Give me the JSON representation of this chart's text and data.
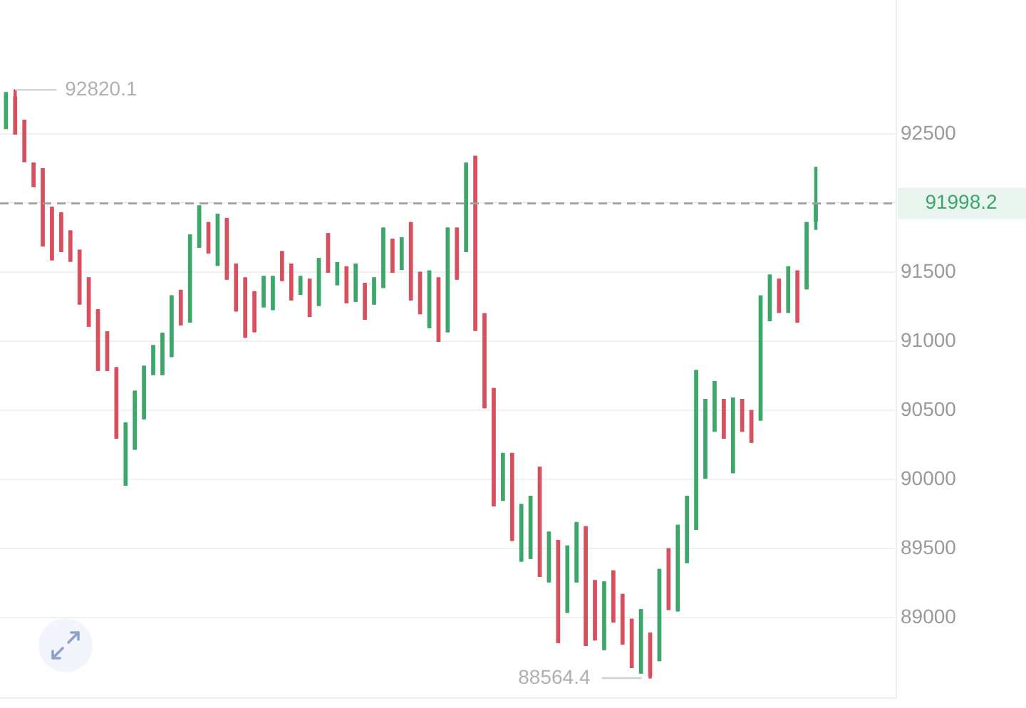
{
  "chart_data": {
    "type": "candlestick",
    "categories": [
      null,
      null,
      null,
      null,
      null,
      null,
      null,
      null,
      null,
      null,
      null,
      null,
      null,
      null,
      null,
      null,
      null,
      null,
      null,
      null,
      null,
      null,
      null,
      null,
      null,
      null,
      null,
      null,
      null,
      null,
      null,
      null,
      null,
      null,
      null,
      null,
      null,
      null,
      null,
      null,
      null,
      null,
      null,
      null,
      null,
      null,
      null,
      null,
      null,
      null,
      null,
      null,
      null,
      null,
      null,
      null,
      null,
      null,
      null,
      null,
      null,
      null,
      null,
      null,
      null,
      null,
      null,
      null,
      null,
      null,
      null,
      null,
      null,
      null,
      null,
      null,
      null,
      null,
      null,
      null,
      null,
      null,
      null,
      null,
      null,
      null,
      null,
      null,
      null
    ],
    "ohlc": [
      [
        92540,
        92800,
        92540,
        92800
      ],
      [
        92770,
        92820.1,
        92500,
        92500
      ],
      [
        92600,
        92600,
        92300,
        92300
      ],
      [
        92290,
        92290,
        92120,
        92120
      ],
      [
        92250,
        92250,
        91690,
        91690
      ],
      [
        91970,
        91970,
        91590,
        91590
      ],
      [
        91930,
        91930,
        91650,
        91650
      ],
      [
        91800,
        91800,
        91580,
        91580
      ],
      [
        91660,
        91660,
        91270,
        91270
      ],
      [
        91460,
        91460,
        91110,
        91110
      ],
      [
        91230,
        91230,
        90790,
        90790
      ],
      [
        91070,
        91070,
        90790,
        90790
      ],
      [
        90810,
        90810,
        90300,
        90300
      ],
      [
        89960,
        90410,
        89960,
        90410
      ],
      [
        90220,
        90640,
        90220,
        90640
      ],
      [
        90440,
        90820,
        90440,
        90820
      ],
      [
        90760,
        90970,
        90760,
        90970
      ],
      [
        90760,
        91060,
        90760,
        91060
      ],
      [
        90890,
        91330,
        90890,
        91330
      ],
      [
        91370,
        91370,
        91120,
        91120
      ],
      [
        91140,
        91770,
        91140,
        91770
      ],
      [
        91680,
        91980,
        91680,
        91980
      ],
      [
        91860,
        91860,
        91640,
        91640
      ],
      [
        91550,
        91920,
        91550,
        91920
      ],
      [
        91890,
        91890,
        91450,
        91450
      ],
      [
        91560,
        91560,
        91220,
        91220
      ],
      [
        91460,
        91460,
        91030,
        91030
      ],
      [
        91360,
        91360,
        91070,
        91070
      ],
      [
        91250,
        91470,
        91250,
        91470
      ],
      [
        91230,
        91470,
        91230,
        91470
      ],
      [
        91650,
        91650,
        91440,
        91440
      ],
      [
        91560,
        91560,
        91300,
        91300
      ],
      [
        91340,
        91470,
        91340,
        91470
      ],
      [
        91450,
        91450,
        91180,
        91180
      ],
      [
        91260,
        91600,
        91260,
        91600
      ],
      [
        91780,
        91780,
        91500,
        91500
      ],
      [
        91410,
        91570,
        91410,
        91570
      ],
      [
        91540,
        91540,
        91280,
        91280
      ],
      [
        91290,
        91560,
        91290,
        91560
      ],
      [
        91420,
        91420,
        91160,
        91160
      ],
      [
        91270,
        91460,
        91270,
        91460
      ],
      [
        91390,
        91820,
        91390,
        91820
      ],
      [
        91740,
        91740,
        91500,
        91500
      ],
      [
        91520,
        91750,
        91520,
        91750
      ],
      [
        91860,
        91860,
        91300,
        91300
      ],
      [
        91500,
        91500,
        91200,
        91200
      ],
      [
        91100,
        91510,
        91100,
        91510
      ],
      [
        91460,
        91460,
        91000,
        91000
      ],
      [
        91070,
        91820,
        91070,
        91820
      ],
      [
        91820,
        91820,
        91450,
        91450
      ],
      [
        91650,
        92290,
        91650,
        92290
      ],
      [
        92340,
        92340,
        91080,
        91080
      ],
      [
        91200,
        91200,
        90520,
        90520
      ],
      [
        90660,
        90660,
        89810,
        89810
      ],
      [
        89850,
        90190,
        89850,
        90190
      ],
      [
        90190,
        90190,
        89560,
        89560
      ],
      [
        89410,
        89820,
        89410,
        89820
      ],
      [
        89430,
        89880,
        89430,
        89880
      ],
      [
        90090,
        90090,
        89300,
        89300
      ],
      [
        89260,
        89620,
        89260,
        89620
      ],
      [
        89560,
        89560,
        88820,
        88820
      ],
      [
        89040,
        89520,
        89040,
        89520
      ],
      [
        89260,
        89690,
        89260,
        89690
      ],
      [
        89660,
        89660,
        88800,
        88800
      ],
      [
        89270,
        89270,
        88840,
        88840
      ],
      [
        88770,
        89260,
        88770,
        89260
      ],
      [
        89340,
        89340,
        88970,
        88970
      ],
      [
        89170,
        89170,
        88810,
        88810
      ],
      [
        88990,
        88990,
        88640,
        88640
      ],
      [
        88600,
        89060,
        88600,
        89060
      ],
      [
        88890,
        88890,
        88564.4,
        88580
      ],
      [
        88690,
        89350,
        88690,
        89350
      ],
      [
        89500,
        89500,
        89060,
        89060
      ],
      [
        89050,
        89670,
        89050,
        89670
      ],
      [
        89400,
        89880,
        89400,
        89880
      ],
      [
        89640,
        90790,
        89640,
        90790
      ],
      [
        90010,
        90580,
        90010,
        90580
      ],
      [
        90350,
        90710,
        90350,
        90710
      ],
      [
        90580,
        90580,
        90300,
        90300
      ],
      [
        90050,
        90590,
        90050,
        90590
      ],
      [
        90580,
        90580,
        90350,
        90350
      ],
      [
        90500,
        90500,
        90270,
        90270
      ],
      [
        90430,
        91330,
        90430,
        91330
      ],
      [
        91150,
        91480,
        91150,
        91480
      ],
      [
        91450,
        91450,
        91210,
        91210
      ],
      [
        91210,
        91540,
        91210,
        91540
      ],
      [
        91510,
        91510,
        91140,
        91140
      ],
      [
        91380,
        91860,
        91380,
        91860
      ],
      [
        91870,
        92260,
        91810,
        91998.2
      ]
    ],
    "colors": [
      "#3da66b",
      "#d6505f",
      "#d6505f",
      "#d6505f",
      "#d6505f",
      "#d6505f",
      "#d6505f",
      "#d6505f",
      "#d6505f",
      "#d6505f",
      "#d6505f",
      "#d6505f",
      "#d6505f",
      "#3da66b",
      "#3da66b",
      "#3da66b",
      "#3da66b",
      "#3da66b",
      "#3da66b",
      "#d6505f",
      "#3da66b",
      "#3da66b",
      "#d6505f",
      "#3da66b",
      "#d6505f",
      "#d6505f",
      "#d6505f",
      "#d6505f",
      "#3da66b",
      "#3da66b",
      "#d6505f",
      "#d6505f",
      "#3da66b",
      "#d6505f",
      "#3da66b",
      "#d6505f",
      "#3da66b",
      "#d6505f",
      "#3da66b",
      "#d6505f",
      "#3da66b",
      "#3da66b",
      "#d6505f",
      "#3da66b",
      "#d6505f",
      "#d6505f",
      "#3da66b",
      "#d6505f",
      "#3da66b",
      "#d6505f",
      "#3da66b",
      "#d6505f",
      "#d6505f",
      "#d6505f",
      "#3da66b",
      "#d6505f",
      "#3da66b",
      "#3da66b",
      "#d6505f",
      "#3da66b",
      "#d6505f",
      "#3da66b",
      "#3da66b",
      "#d6505f",
      "#d6505f",
      "#3da66b",
      "#d6505f",
      "#d6505f",
      "#d6505f",
      "#3da66b",
      "#d6505f",
      "#3da66b",
      "#d6505f",
      "#3da66b",
      "#3da66b",
      "#3da66b",
      "#3da66b",
      "#3da66b",
      "#d6505f",
      "#3da66b",
      "#d6505f",
      "#d6505f",
      "#3da66b",
      "#3da66b",
      "#d6505f",
      "#3da66b",
      "#d6505f",
      "#3da66b",
      "#3da66b"
    ],
    "ylim": [
      88420,
      93470
    ],
    "yticks": [
      89000,
      89500,
      90000,
      90500,
      91000,
      91500,
      {
        "value": 92000,
        "label": null
      },
      92500
    ],
    "grid": "y",
    "ref_lines": [
      {
        "axis": "y",
        "value": 91998.2,
        "label": "91998.2",
        "color": "#a0a0a0",
        "line_style": "dashed"
      }
    ],
    "annotations": [
      "92820.1",
      "88564.4"
    ]
  }
}
